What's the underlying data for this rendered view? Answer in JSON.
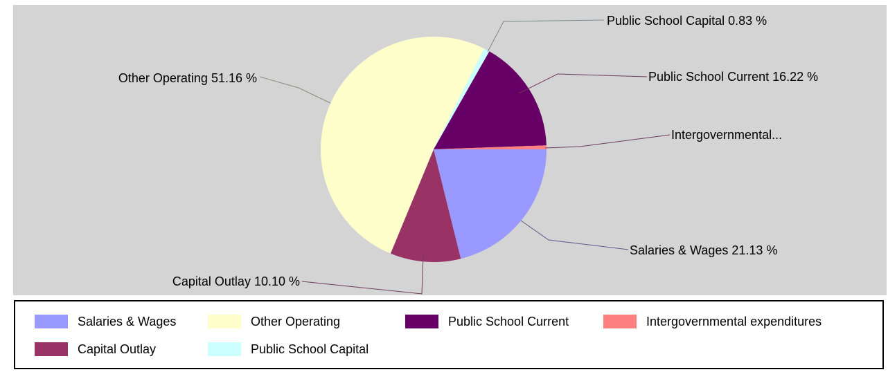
{
  "chart_data": {
    "type": "pie",
    "slices": [
      {
        "name": "Salaries & Wages",
        "label": "Salaries & Wages 21.13 %",
        "value": 21.13,
        "color": "#9999ff"
      },
      {
        "name": "Capital Outlay",
        "label": "Capital Outlay 10.10 %",
        "value": 10.1,
        "color": "#993366"
      },
      {
        "name": "Other Operating",
        "label": "Other Operating 51.16 %",
        "value": 51.16,
        "color": "#ffffcc"
      },
      {
        "name": "Public School Capital",
        "label": "Public School Capital 0.83 %",
        "value": 0.83,
        "color": "#ccffff"
      },
      {
        "name": "Public School Current",
        "label": "Public School Current 16.22 %",
        "value": 16.22,
        "color": "#660066"
      },
      {
        "name": "Intergovernmental expenditures",
        "label": "Intergovernmental...",
        "value": 0.56,
        "color": "#ff8080"
      }
    ],
    "legend_placement": "bottom"
  },
  "legend": {
    "items": [
      {
        "label": "Salaries & Wages",
        "color": "#9999ff"
      },
      {
        "label": "Other Operating",
        "color": "#ffffcc"
      },
      {
        "label": "Public School Current",
        "color": "#660066"
      },
      {
        "label": "Intergovernmental expenditures",
        "color": "#ff8080"
      },
      {
        "label": "Capital Outlay",
        "color": "#993366"
      },
      {
        "label": "Public School Capital",
        "color": "#ccffff"
      }
    ]
  }
}
